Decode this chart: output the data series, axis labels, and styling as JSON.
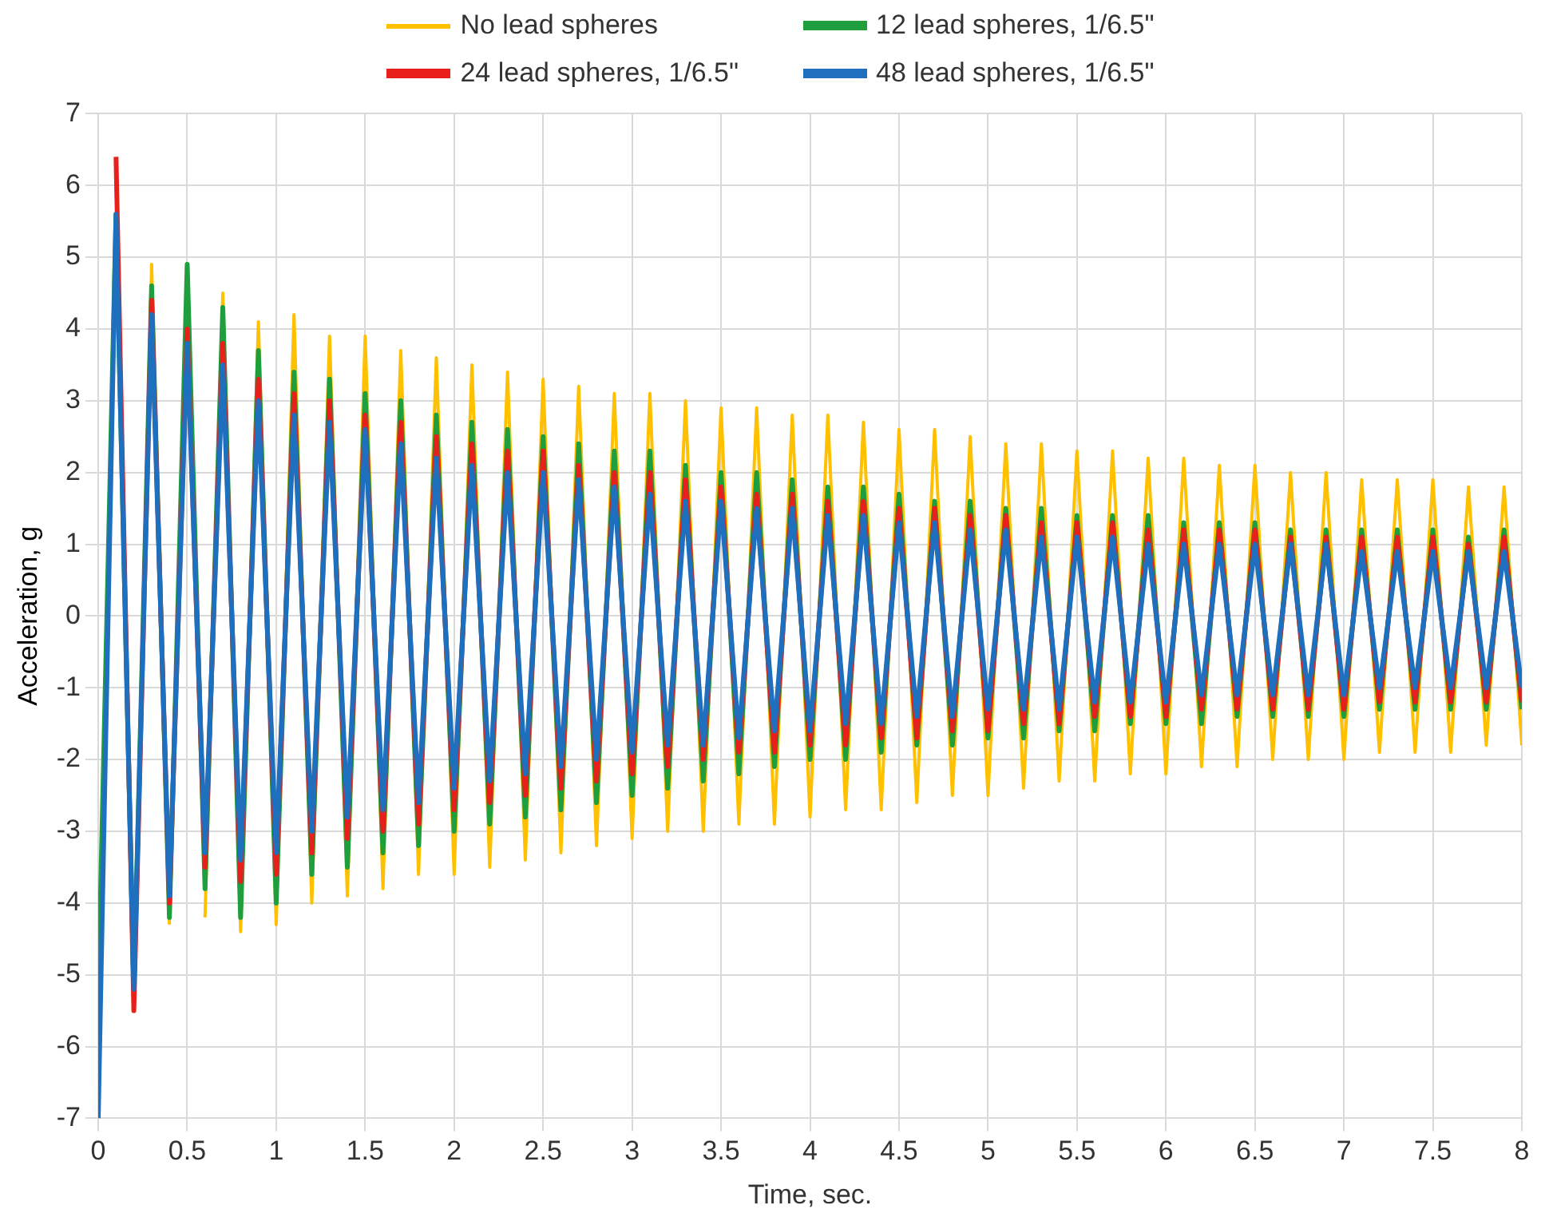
{
  "chart_data": {
    "type": "line",
    "xlabel": "Time, sec.",
    "ylabel": "Acceleration, g",
    "xlim": [
      0,
      8
    ],
    "xticks": [
      0,
      0.5,
      1,
      1.5,
      2,
      2.5,
      3,
      3.5,
      4,
      4.5,
      5,
      5.5,
      6,
      6.5,
      7,
      7.5,
      8
    ],
    "ylim": [
      -7,
      7
    ],
    "yticks": [
      -7,
      -6,
      -5,
      -4,
      -3,
      -2,
      -1,
      0,
      1,
      2,
      3,
      4,
      5,
      6,
      7
    ],
    "grid": true,
    "legend": "top",
    "marker": "none",
    "line_style": "solid",
    "x": [
      0,
      0.1,
      0.2,
      0.3,
      0.4,
      0.5,
      0.6,
      0.7,
      0.8,
      0.9,
      1,
      1.1,
      1.2,
      1.3,
      1.4,
      1.5,
      1.6,
      1.7,
      1.8,
      1.9,
      2,
      2.1,
      2.2,
      2.3,
      2.4,
      2.5,
      2.6,
      2.7,
      2.8,
      2.9,
      3,
      3.1,
      3.2,
      3.3,
      3.4,
      3.5,
      3.6,
      3.7,
      3.8,
      3.9,
      4,
      4.1,
      4.2,
      4.3,
      4.4,
      4.5,
      4.6,
      4.7,
      4.8,
      4.9,
      5,
      5.1,
      5.2,
      5.3,
      5.4,
      5.5,
      5.6,
      5.7,
      5.8,
      5.9,
      6,
      6.1,
      6.2,
      6.3,
      6.4,
      6.5,
      6.6,
      6.7,
      6.8,
      6.9,
      7,
      7.1,
      7.2,
      7.3,
      7.4,
      7.5,
      7.6,
      7.7,
      7.8,
      7.9,
      8
    ],
    "series": [
      {
        "name": "No lead spheres",
        "color": "#ffc000",
        "values": [
          null,
          null,
          -5.5,
          4.9,
          -4.3,
          null,
          -4.2,
          4.5,
          -4.4,
          4.1,
          -4.3,
          4.2,
          -4.0,
          3.9,
          -3.9,
          3.9,
          -3.8,
          3.7,
          -3.6,
          3.6,
          -3.6,
          3.5,
          -3.5,
          3.4,
          -3.4,
          3.3,
          -3.3,
          3.2,
          -3.2,
          3.1,
          -3.1,
          3.1,
          -3.0,
          3.0,
          -3.0,
          2.9,
          -2.9,
          2.9,
          -2.9,
          2.8,
          -2.8,
          2.8,
          -2.7,
          2.7,
          -2.7,
          2.6,
          -2.6,
          2.6,
          -2.5,
          2.5,
          -2.5,
          2.4,
          -2.4,
          2.4,
          -2.3,
          2.3,
          -2.3,
          2.3,
          -2.2,
          2.2,
          -2.2,
          2.2,
          -2.1,
          2.1,
          -2.1,
          2.1,
          -2.0,
          2.0,
          -2.0,
          2.0,
          -2.0,
          1.9,
          -1.9,
          1.9,
          -1.9,
          1.9,
          -1.9,
          1.8,
          -1.8,
          1.8,
          -1.8
        ]
      },
      {
        "name": "12 lead spheres, 1/6.5\"",
        "color": "#1e9e3c",
        "values": [
          -5.3,
          5.6,
          -5.2,
          4.6,
          -4.2,
          4.9,
          -3.8,
          4.3,
          -4.2,
          3.7,
          -4.0,
          3.4,
          -3.6,
          3.3,
          -3.5,
          3.1,
          -3.3,
          3.0,
          -3.2,
          2.8,
          -3.0,
          2.7,
          -2.9,
          2.6,
          -2.8,
          2.5,
          -2.7,
          2.4,
          -2.6,
          2.3,
          -2.5,
          2.3,
          -2.4,
          2.1,
          -2.3,
          2.0,
          -2.2,
          2.0,
          -2.1,
          1.9,
          -2.0,
          1.8,
          -2.0,
          1.8,
          -1.9,
          1.7,
          -1.8,
          1.6,
          -1.8,
          1.6,
          -1.7,
          1.5,
          -1.7,
          1.5,
          -1.6,
          1.4,
          -1.6,
          1.4,
          -1.5,
          1.4,
          -1.5,
          1.3,
          -1.5,
          1.3,
          -1.4,
          1.3,
          -1.4,
          1.2,
          -1.4,
          1.2,
          -1.4,
          1.2,
          -1.3,
          1.2,
          -1.3,
          1.2,
          -1.3,
          1.1,
          -1.3,
          1.2,
          -1.3
        ]
      },
      {
        "name": "24 lead spheres, 1/6.5\"",
        "color": "#e8201c",
        "values": [
          null,
          6.4,
          -5.5,
          4.4,
          -4.0,
          4.0,
          -3.5,
          3.8,
          -3.7,
          3.3,
          -3.6,
          3.1,
          -3.3,
          3.0,
          -3.1,
          2.8,
          -3.0,
          2.7,
          -2.9,
          2.5,
          -2.7,
          2.4,
          -2.6,
          2.3,
          -2.5,
          2.3,
          -2.4,
          2.1,
          -2.3,
          2.0,
          -2.2,
          2.0,
          -2.1,
          1.9,
          -2.0,
          1.8,
          -1.9,
          1.7,
          -1.9,
          1.7,
          -1.8,
          1.6,
          -1.8,
          1.6,
          -1.7,
          1.5,
          -1.7,
          1.5,
          -1.6,
          1.4,
          -1.6,
          1.4,
          -1.5,
          1.3,
          -1.5,
          1.3,
          -1.4,
          1.3,
          -1.4,
          1.2,
          -1.4,
          1.2,
          -1.3,
          1.2,
          -1.3,
          1.2,
          -1.3,
          1.1,
          -1.3,
          1.1,
          -1.3,
          1.1,
          -1.2,
          1.1,
          -1.2,
          1.1,
          -1.2,
          1.0,
          -1.2,
          1.1,
          -1.2
        ]
      },
      {
        "name": "48 lead spheres, 1/6.5\"",
        "color": "#1f6fbf",
        "values": [
          -7.0,
          5.6,
          -5.2,
          4.2,
          -3.9,
          3.8,
          -3.3,
          3.5,
          -3.4,
          3.0,
          -3.3,
          2.8,
          -3.0,
          2.7,
          -2.8,
          2.6,
          -2.7,
          2.4,
          -2.6,
          2.2,
          -2.4,
          2.1,
          -2.3,
          2.0,
          -2.2,
          2.0,
          -2.1,
          1.9,
          -2.0,
          1.8,
          -1.9,
          1.7,
          -1.8,
          1.6,
          -1.8,
          1.6,
          -1.7,
          1.5,
          -1.6,
          1.5,
          -1.6,
          1.4,
          -1.5,
          1.4,
          -1.5,
          1.3,
          -1.4,
          1.3,
          -1.4,
          1.2,
          -1.3,
          1.2,
          -1.3,
          1.1,
          -1.3,
          1.1,
          -1.2,
          1.1,
          -1.2,
          1.0,
          -1.2,
          1.0,
          -1.1,
          1.0,
          -1.1,
          1.0,
          -1.1,
          1.0,
          -1.1,
          1.0,
          -1.1,
          0.9,
          -1.0,
          0.9,
          -1.0,
          0.9,
          -1.0,
          0.9,
          -1.0,
          0.9,
          -1.0
        ]
      }
    ]
  }
}
